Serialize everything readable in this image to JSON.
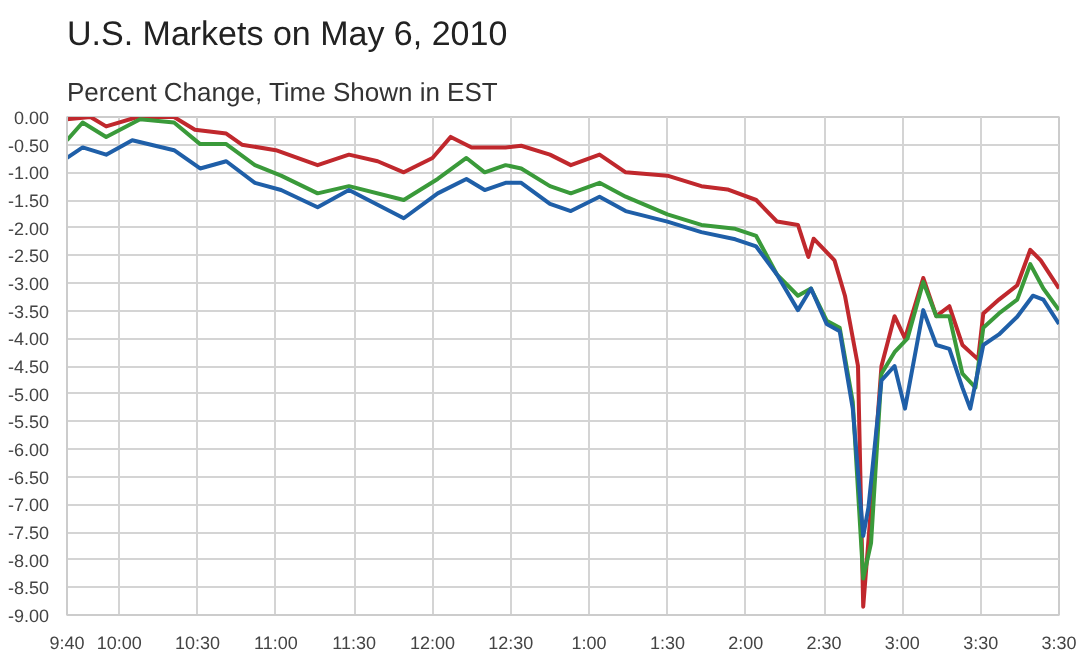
{
  "chart_data": {
    "type": "line",
    "title": "U.S. Markets on May 6, 2010",
    "subtitle": "Percent Change, Time Shown in EST",
    "xlim": [
      "2010-05-06T09:40",
      "2010-05-06T16:00"
    ],
    "ylim": [
      -9.0,
      0.0
    ],
    "xticks": [
      {
        "value": "2010-05-06T09:40",
        "label": "9:40"
      },
      {
        "value": "2010-05-06T10:00",
        "label": "10:00"
      },
      {
        "value": "2010-05-06T10:30",
        "label": "10:30"
      },
      {
        "value": "2010-05-06T11:00",
        "label": "11:00"
      },
      {
        "value": "2010-05-06T11:30",
        "label": "11:30"
      },
      {
        "value": "2010-05-06T12:00",
        "label": "12:00"
      },
      {
        "value": "2010-05-06T12:30",
        "label": "12:30"
      },
      {
        "value": "2010-05-06T13:00",
        "label": "1:00"
      },
      {
        "value": "2010-05-06T13:30",
        "label": "1:30"
      },
      {
        "value": "2010-05-06T14:00",
        "label": "2:00"
      },
      {
        "value": "2010-05-06T14:30",
        "label": "2:30"
      },
      {
        "value": "2010-05-06T15:00",
        "label": "3:00"
      },
      {
        "value": "2010-05-06T15:30",
        "label": "3:30"
      },
      {
        "value": "2010-05-06T16:00",
        "label": "3:30"
      }
    ],
    "yticks": [
      {
        "value": 0,
        "label": "0.00"
      },
      {
        "value": -0.5,
        "label": "-0.50"
      },
      {
        "value": -1,
        "label": "-1.00"
      },
      {
        "value": -1.5,
        "label": "-1.50"
      },
      {
        "value": -2,
        "label": "-2.00"
      },
      {
        "value": -2.5,
        "label": "-2.50"
      },
      {
        "value": -3,
        "label": "-3.00"
      },
      {
        "value": -3.5,
        "label": "-3.50"
      },
      {
        "value": -4,
        "label": "-4.00"
      },
      {
        "value": -4.5,
        "label": "-4.50"
      },
      {
        "value": -5,
        "label": "-5.00"
      },
      {
        "value": -5.5,
        "label": "-5.50"
      },
      {
        "value": -6,
        "label": "-6.00"
      },
      {
        "value": -6.5,
        "label": "-6.50"
      },
      {
        "value": -7,
        "label": "-7.00"
      },
      {
        "value": -7.5,
        "label": "-7.50"
      },
      {
        "value": -8,
        "label": "-8.00"
      },
      {
        "value": -8.5,
        "label": "-8.50"
      },
      {
        "value": -9,
        "label": "-9.00"
      }
    ],
    "grid": true,
    "series": [
      {
        "color": "#c0282d",
        "x": [
          "2010-05-06T09:40",
          "2010-05-06T09:49",
          "2010-05-06T09:55",
          "2010-05-06T10:07",
          "2010-05-06T10:21",
          "2010-05-06T10:29",
          "2010-05-06T10:41",
          "2010-05-06T10:47",
          "2010-05-06T11:00",
          "2010-05-06T11:16",
          "2010-05-06T11:28",
          "2010-05-06T11:39",
          "2010-05-06T11:49",
          "2010-05-06T12:00",
          "2010-05-06T12:07",
          "2010-05-06T12:15",
          "2010-05-06T12:28",
          "2010-05-06T12:34",
          "2010-05-06T12:45",
          "2010-05-06T12:53",
          "2010-05-06T13:04",
          "2010-05-06T13:14",
          "2010-05-06T13:30",
          "2010-05-06T13:43",
          "2010-05-06T13:53",
          "2010-05-06T14:04",
          "2010-05-06T14:12",
          "2010-05-06T14:20",
          "2010-05-06T14:24",
          "2010-05-06T14:26",
          "2010-05-06T14:34",
          "2010-05-06T14:38",
          "2010-05-06T14:43",
          "2010-05-06T14:45",
          "2010-05-06T14:48",
          "2010-05-06T14:52",
          "2010-05-06T14:57",
          "2010-05-06T15:01",
          "2010-05-06T15:08",
          "2010-05-06T15:13",
          "2010-05-06T15:18",
          "2010-05-06T15:23",
          "2010-05-06T15:29",
          "2010-05-06T15:31",
          "2010-05-06T15:37",
          "2010-05-06T15:44",
          "2010-05-06T15:49",
          "2010-05-06T15:53",
          "2010-05-06T16:00"
        ],
        "values": [
          -0.04,
          0.0,
          -0.17,
          0.0,
          0.0,
          -0.23,
          -0.3,
          -0.5,
          -0.6,
          -0.87,
          -0.68,
          -0.8,
          -1.0,
          -0.74,
          -0.36,
          -0.55,
          -0.55,
          -0.52,
          -0.68,
          -0.87,
          -0.68,
          -1.0,
          -1.06,
          -1.25,
          -1.31,
          -1.5,
          -1.89,
          -1.95,
          -2.53,
          -2.2,
          -2.59,
          -3.23,
          -4.5,
          -8.85,
          -7.06,
          -4.5,
          -3.6,
          -4.0,
          -2.91,
          -3.6,
          -3.42,
          -4.12,
          -4.38,
          -3.55,
          -3.3,
          -3.04,
          -2.4,
          -2.59,
          -3.1
        ]
      },
      {
        "color": "#3a9a3a",
        "x": [
          "2010-05-06T09:40",
          "2010-05-06T09:46",
          "2010-05-06T09:55",
          "2010-05-06T10:08",
          "2010-05-06T10:21",
          "2010-05-06T10:31",
          "2010-05-06T10:41",
          "2010-05-06T10:52",
          "2010-05-06T11:02",
          "2010-05-06T11:16",
          "2010-05-06T11:28",
          "2010-05-06T11:49",
          "2010-05-06T12:02",
          "2010-05-06T12:13",
          "2010-05-06T12:20",
          "2010-05-06T12:28",
          "2010-05-06T12:34",
          "2010-05-06T12:45",
          "2010-05-06T12:53",
          "2010-05-06T13:04",
          "2010-05-06T13:14",
          "2010-05-06T13:30",
          "2010-05-06T13:43",
          "2010-05-06T13:56",
          "2010-05-06T14:04",
          "2010-05-06T14:12",
          "2010-05-06T14:20",
          "2010-05-06T14:25",
          "2010-05-06T14:31",
          "2010-05-06T14:36",
          "2010-05-06T14:41",
          "2010-05-06T14:45",
          "2010-05-06T14:48",
          "2010-05-06T14:52",
          "2010-05-06T14:57",
          "2010-05-06T15:02",
          "2010-05-06T15:08",
          "2010-05-06T15:13",
          "2010-05-06T15:18",
          "2010-05-06T15:23",
          "2010-05-06T15:28",
          "2010-05-06T15:31",
          "2010-05-06T15:37",
          "2010-05-06T15:44",
          "2010-05-06T15:49",
          "2010-05-06T15:54",
          "2010-05-06T16:00"
        ],
        "values": [
          -0.42,
          -0.1,
          -0.36,
          -0.04,
          -0.1,
          -0.49,
          -0.49,
          -0.87,
          -1.06,
          -1.38,
          -1.25,
          -1.5,
          -1.12,
          -0.74,
          -1.0,
          -0.87,
          -0.93,
          -1.25,
          -1.38,
          -1.19,
          -1.44,
          -1.76,
          -1.95,
          -2.02,
          -2.15,
          -2.85,
          -3.23,
          -3.1,
          -3.68,
          -3.81,
          -5.15,
          -8.34,
          -7.7,
          -4.64,
          -4.25,
          -4.0,
          -2.98,
          -3.6,
          -3.6,
          -4.64,
          -4.89,
          -3.81,
          -3.55,
          -3.3,
          -2.66,
          -3.1,
          -3.49
        ]
      },
      {
        "color": "#1f5fa8",
        "x": [
          "2010-05-06T09:40",
          "2010-05-06T09:46",
          "2010-05-06T09:55",
          "2010-05-06T10:05",
          "2010-05-06T10:21",
          "2010-05-06T10:31",
          "2010-05-06T10:41",
          "2010-05-06T10:52",
          "2010-05-06T11:02",
          "2010-05-06T11:16",
          "2010-05-06T11:28",
          "2010-05-06T11:49",
          "2010-05-06T12:02",
          "2010-05-06T12:13",
          "2010-05-06T12:20",
          "2010-05-06T12:28",
          "2010-05-06T12:34",
          "2010-05-06T12:45",
          "2010-05-06T12:53",
          "2010-05-06T13:04",
          "2010-05-06T13:14",
          "2010-05-06T13:30",
          "2010-05-06T13:43",
          "2010-05-06T13:56",
          "2010-05-06T14:04",
          "2010-05-06T14:12",
          "2010-05-06T14:20",
          "2010-05-06T14:25",
          "2010-05-06T14:31",
          "2010-05-06T14:36",
          "2010-05-06T14:41",
          "2010-05-06T14:45",
          "2010-05-06T14:47",
          "2010-05-06T14:52",
          "2010-05-06T14:57",
          "2010-05-06T15:01",
          "2010-05-06T15:08",
          "2010-05-06T15:13",
          "2010-05-06T15:18",
          "2010-05-06T15:23",
          "2010-05-06T15:26",
          "2010-05-06T15:31",
          "2010-05-06T15:37",
          "2010-05-06T15:44",
          "2010-05-06T15:50",
          "2010-05-06T15:54",
          "2010-05-06T16:00"
        ],
        "values": [
          -0.74,
          -0.55,
          -0.68,
          -0.42,
          -0.6,
          -0.93,
          -0.8,
          -1.19,
          -1.32,
          -1.63,
          -1.32,
          -1.83,
          -1.38,
          -1.12,
          -1.32,
          -1.19,
          -1.19,
          -1.57,
          -1.7,
          -1.44,
          -1.7,
          -1.89,
          -2.08,
          -2.21,
          -2.34,
          -2.85,
          -3.49,
          -3.1,
          -3.74,
          -3.87,
          -5.27,
          -7.57,
          -7.06,
          -4.76,
          -4.5,
          -5.27,
          -3.49,
          -4.12,
          -4.19,
          -4.89,
          -5.27,
          -4.12,
          -3.93,
          -3.61,
          -3.23,
          -3.3,
          -3.74
        ]
      }
    ]
  }
}
